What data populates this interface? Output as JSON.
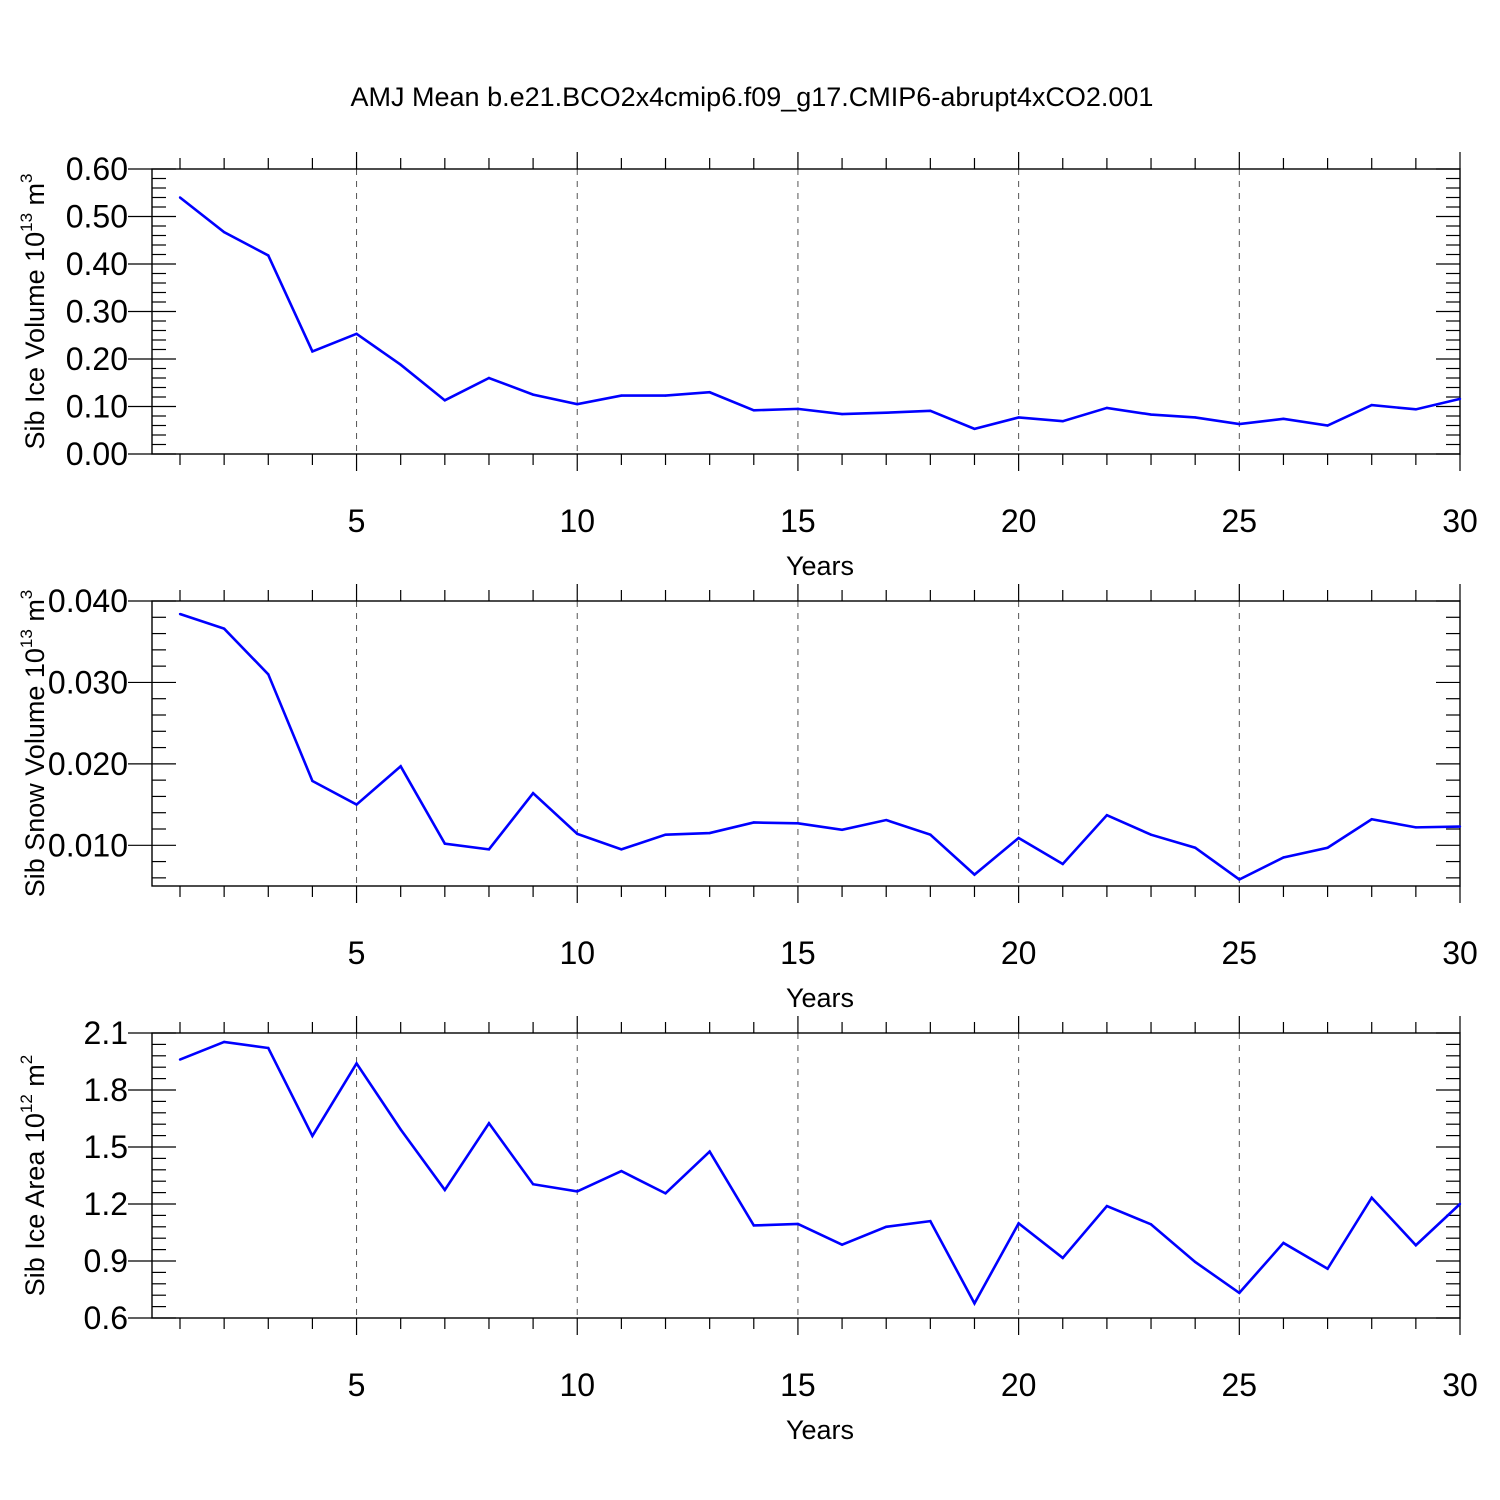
{
  "title": "AMJ Mean b.e21.BCO2x4cmip6.f09_g17.CMIP6-abrupt4xCO2.001",
  "colors": {
    "line": "#0000ff",
    "axis": "#000000",
    "grid": "#555555"
  },
  "chart_data": [
    {
      "type": "line",
      "xlabel": "Years",
      "ylabel": {
        "main": "Sib Ice Volume 10",
        "sup": "13",
        "unit": " m",
        "unit_sup": "3"
      },
      "xlim": [
        1,
        30
      ],
      "ylim": [
        0,
        0.6
      ],
      "xticks": [
        5,
        10,
        15,
        20,
        25,
        30
      ],
      "xtick_labels": [
        "5",
        "10",
        "15",
        "20",
        "25",
        "30"
      ],
      "yticks": [
        0,
        0.1,
        0.2,
        0.3,
        0.4,
        0.5,
        0.6
      ],
      "ytick_labels": [
        "0.00",
        "0.10",
        "0.20",
        "0.30",
        "0.40",
        "0.50",
        "0.60"
      ],
      "grid": "vertical dashed at major x ticks",
      "x": [
        1,
        2,
        3,
        4,
        5,
        6,
        7,
        8,
        9,
        10,
        11,
        12,
        13,
        14,
        15,
        16,
        17,
        18,
        19,
        20,
        21,
        22,
        23,
        24,
        25,
        26,
        27,
        28,
        29,
        30
      ],
      "series": [
        {
          "values": [
            0.54,
            0.467,
            0.418,
            0.216,
            0.253,
            0.188,
            0.113,
            0.16,
            0.125,
            0.105,
            0.123,
            0.123,
            0.13,
            0.092,
            0.095,
            0.084,
            0.087,
            0.091,
            0.053,
            0.077,
            0.069,
            0.097,
            0.083,
            0.077,
            0.063,
            0.074,
            0.06,
            0.103,
            0.094,
            0.116
          ]
        }
      ]
    },
    {
      "type": "line",
      "xlabel": "Years",
      "ylabel": {
        "main": "Sib Snow Volume 10",
        "sup": "13",
        "unit": " m",
        "unit_sup": "3"
      },
      "xlim": [
        1,
        30
      ],
      "ylim": [
        0.005,
        0.04
      ],
      "xticks": [
        5,
        10,
        15,
        20,
        25,
        30
      ],
      "xtick_labels": [
        "5",
        "10",
        "15",
        "20",
        "25",
        "30"
      ],
      "yticks": [
        0.01,
        0.02,
        0.03,
        0.04
      ],
      "ytick_labels": [
        "0.010",
        "0.020",
        "0.030",
        "0.040"
      ],
      "grid": "vertical dashed at major x ticks",
      "x": [
        1,
        2,
        3,
        4,
        5,
        6,
        7,
        8,
        9,
        10,
        11,
        12,
        13,
        14,
        15,
        16,
        17,
        18,
        19,
        20,
        21,
        22,
        23,
        24,
        25,
        26,
        27,
        28,
        29,
        30
      ],
      "series": [
        {
          "values": [
            0.0384,
            0.0366,
            0.031,
            0.0179,
            0.015,
            0.0197,
            0.0102,
            0.0095,
            0.0164,
            0.0114,
            0.0095,
            0.0113,
            0.0115,
            0.0128,
            0.0127,
            0.0119,
            0.0131,
            0.0113,
            0.0064,
            0.0109,
            0.0077,
            0.0137,
            0.0113,
            0.0097,
            0.0058,
            0.0085,
            0.0097,
            0.0132,
            0.0122,
            0.0123
          ]
        }
      ]
    },
    {
      "type": "line",
      "xlabel": "Years",
      "ylabel": {
        "main": "Sib Ice Area 10",
        "sup": "12",
        "unit": " m",
        "unit_sup": "2"
      },
      "xlim": [
        1,
        30
      ],
      "ylim": [
        0.6,
        2.1
      ],
      "xticks": [
        5,
        10,
        15,
        20,
        25,
        30
      ],
      "xtick_labels": [
        "5",
        "10",
        "15",
        "20",
        "25",
        "30"
      ],
      "yticks": [
        0.6,
        0.9,
        1.2,
        1.5,
        1.8,
        2.1
      ],
      "ytick_labels": [
        "0.6",
        "0.9",
        "1.2",
        "1.5",
        "1.8",
        "2.1"
      ],
      "grid": "vertical dashed at major x ticks",
      "x": [
        1,
        2,
        3,
        4,
        5,
        6,
        7,
        8,
        9,
        10,
        11,
        12,
        13,
        14,
        15,
        16,
        17,
        18,
        19,
        20,
        21,
        22,
        23,
        24,
        25,
        26,
        27,
        28,
        29,
        30
      ],
      "series": [
        {
          "values": [
            1.96,
            2.053,
            2.021,
            1.558,
            1.94,
            1.592,
            1.274,
            1.625,
            1.304,
            1.266,
            1.373,
            1.256,
            1.476,
            1.087,
            1.095,
            0.986,
            1.08,
            1.11,
            0.677,
            1.098,
            0.916,
            1.189,
            1.093,
            0.895,
            0.732,
            0.995,
            0.859,
            1.233,
            0.983,
            1.2
          ]
        }
      ]
    }
  ]
}
